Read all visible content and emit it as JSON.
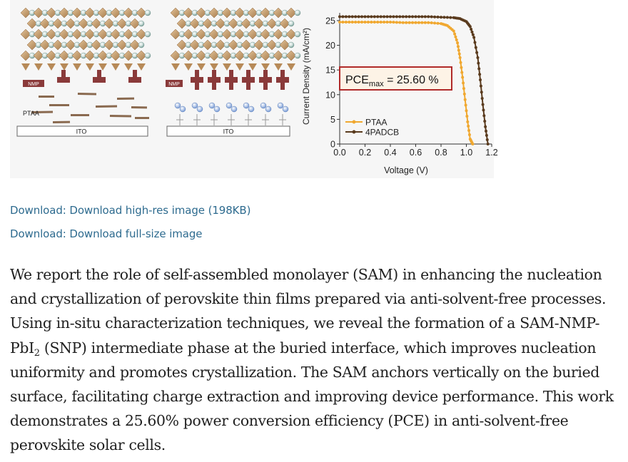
{
  "figure": {
    "panel_left": {
      "layers": [
        "NMP",
        "PTAA",
        "ITO"
      ]
    },
    "panel_mid": {
      "layers": [
        "NMP",
        "ITO"
      ]
    },
    "pce_label_prefix": "PCE",
    "pce_label_sub": "max",
    "pce_label_suffix": " = 25.60 %",
    "chart_data": {
      "type": "line",
      "xlabel": "Voltage (V)",
      "ylabel": "Current Density (mA/cm²)",
      "xlim": [
        0.0,
        1.2
      ],
      "ylim": [
        0,
        26
      ],
      "xticks": [
        "0.0",
        "0.2",
        "0.4",
        "0.6",
        "0.8",
        "1.0",
        "1.2"
      ],
      "yticks": [
        "0",
        "5",
        "10",
        "15",
        "20",
        "25"
      ],
      "legend_position": "bottom-left",
      "series": [
        {
          "name": "PTAA",
          "color": "#f0a830",
          "x": [
            0.0,
            0.1,
            0.2,
            0.3,
            0.4,
            0.5,
            0.6,
            0.7,
            0.8,
            0.85,
            0.9,
            0.93,
            0.95,
            0.97,
            0.99,
            1.01,
            1.03,
            1.05
          ],
          "y": [
            24.7,
            24.7,
            24.7,
            24.7,
            24.7,
            24.6,
            24.6,
            24.6,
            24.4,
            24.0,
            22.9,
            20.5,
            17.5,
            13.5,
            9.0,
            4.5,
            1.0,
            0
          ]
        },
        {
          "name": "4PADCB",
          "color": "#5a3b1e",
          "x": [
            0.0,
            0.1,
            0.2,
            0.3,
            0.4,
            0.5,
            0.6,
            0.7,
            0.8,
            0.9,
            0.95,
            1.0,
            1.03,
            1.06,
            1.09,
            1.11,
            1.13,
            1.15,
            1.17
          ],
          "y": [
            25.8,
            25.8,
            25.8,
            25.8,
            25.8,
            25.8,
            25.8,
            25.8,
            25.7,
            25.6,
            25.4,
            24.8,
            23.8,
            21.6,
            17.5,
            13.0,
            8.0,
            3.5,
            0
          ]
        }
      ]
    }
  },
  "links": {
    "download_high_res": "Download: Download high-res image (198KB)",
    "download_full_size": "Download: Download full-size image"
  },
  "abstract": {
    "part1": "We report the role of self-assembled monolayer (SAM) in enhancing the nucleation and crystallization of perovskite thin films prepared via anti-solvent-free processes. Using in-situ characterization techniques, we reveal the formation of a SAM-NMP-PbI",
    "sub": "2",
    "part2": " (SNP) intermediate phase at the buried interface, which improves nucleation uniformity and promotes crystallization. The SAM anchors vertically on the buried surface, facilitating charge extraction and improving device performance. This work demonstrates a 25.60% power conversion efficiency (PCE) in anti-solvent-free perovskite solar cells."
  }
}
